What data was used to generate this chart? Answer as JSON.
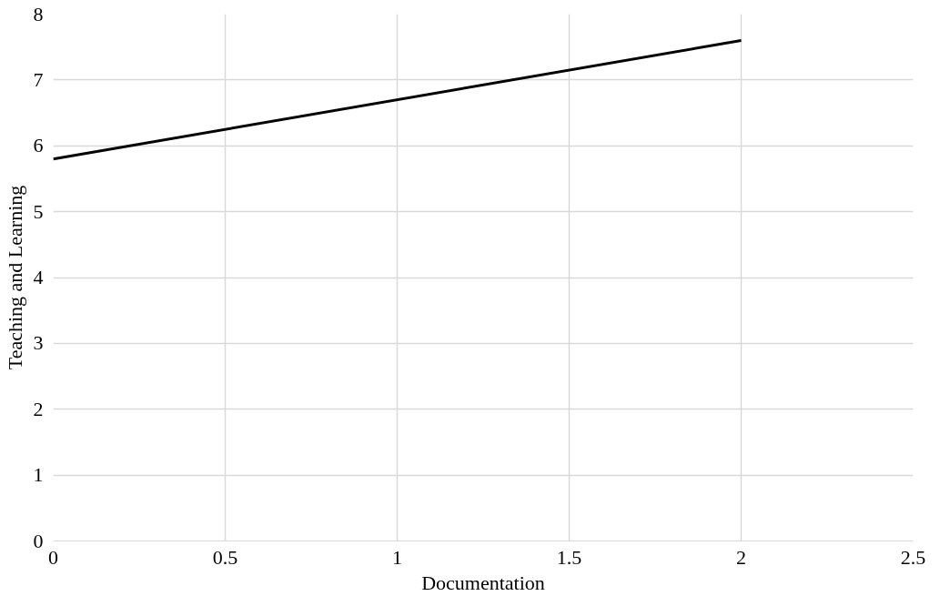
{
  "chart_data": {
    "type": "line",
    "xlabel": "Documentation",
    "ylabel": "Teaching and Learning",
    "x": [
      0,
      2
    ],
    "series": [
      {
        "color": "#000000",
        "values": [
          5.8,
          7.6
        ]
      }
    ],
    "xlim": [
      0,
      2.5
    ],
    "xticks": [
      0,
      0.5,
      1,
      1.5,
      2,
      2.5
    ],
    "ylim": [
      0,
      8
    ],
    "yticks": [
      0,
      1,
      2,
      3,
      4,
      5,
      6,
      7,
      8
    ],
    "grid": true,
    "marker": "none",
    "line_style": "solid"
  }
}
